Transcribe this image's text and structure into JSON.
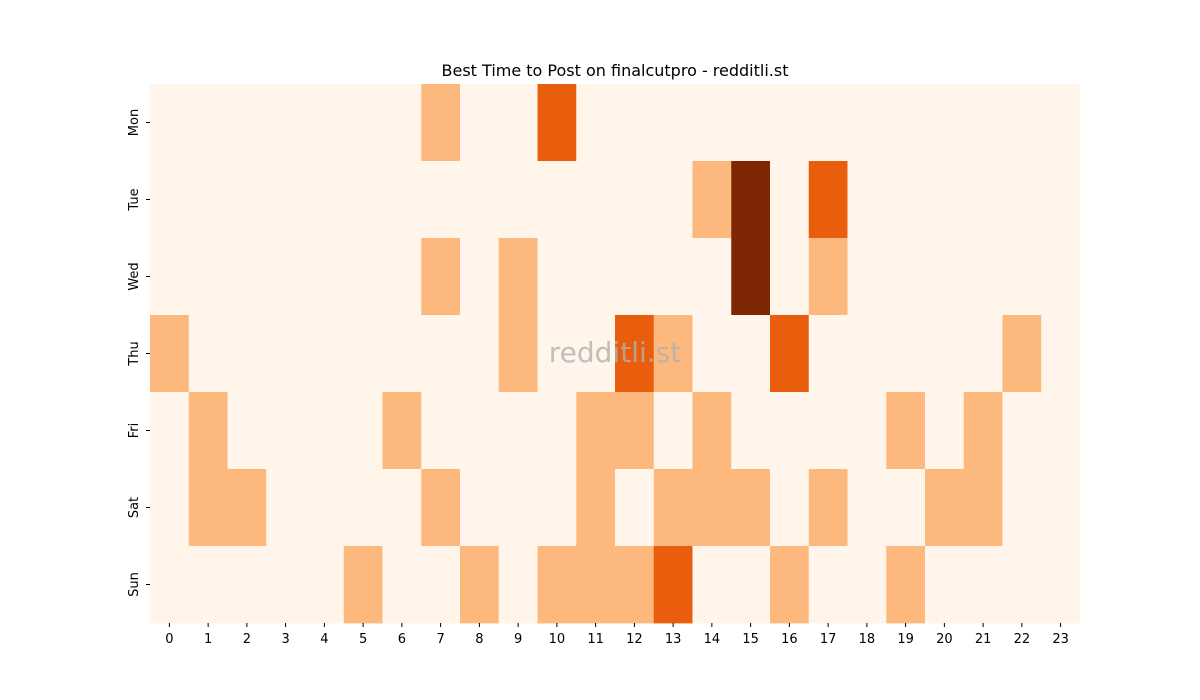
{
  "chart_data": {
    "type": "heatmap",
    "title": "Best Time to Post on finalcutpro - redditli.st",
    "x_categories": [
      "0",
      "1",
      "2",
      "3",
      "4",
      "5",
      "6",
      "7",
      "8",
      "9",
      "10",
      "11",
      "12",
      "13",
      "14",
      "15",
      "16",
      "17",
      "18",
      "19",
      "20",
      "21",
      "22",
      "23"
    ],
    "y_categories": [
      "Mon",
      "Tue",
      "Wed",
      "Thu",
      "Fri",
      "Sat",
      "Sun"
    ],
    "values": [
      [
        0,
        0,
        0,
        0,
        0,
        0,
        0,
        1,
        0,
        0,
        2,
        0,
        0,
        0,
        0,
        0,
        0,
        0,
        0,
        0,
        0,
        0,
        0,
        0
      ],
      [
        0,
        0,
        0,
        0,
        0,
        0,
        0,
        0,
        0,
        0,
        0,
        0,
        0,
        0,
        1,
        3,
        0,
        2,
        0,
        0,
        0,
        0,
        0,
        0
      ],
      [
        0,
        0,
        0,
        0,
        0,
        0,
        0,
        1,
        0,
        1,
        0,
        0,
        0,
        0,
        0,
        3,
        0,
        1,
        0,
        0,
        0,
        0,
        0,
        0
      ],
      [
        1,
        0,
        0,
        0,
        0,
        0,
        0,
        0,
        0,
        1,
        0,
        0,
        2,
        1,
        0,
        0,
        2,
        0,
        0,
        0,
        0,
        0,
        1,
        0
      ],
      [
        0,
        1,
        0,
        0,
        0,
        0,
        1,
        0,
        0,
        0,
        0,
        1,
        1,
        0,
        1,
        0,
        0,
        0,
        0,
        1,
        0,
        1,
        0,
        0
      ],
      [
        0,
        1,
        1,
        0,
        0,
        0,
        0,
        1,
        0,
        0,
        0,
        1,
        0,
        1,
        1,
        1,
        0,
        1,
        0,
        0,
        1,
        1,
        0,
        0
      ],
      [
        0,
        0,
        0,
        0,
        0,
        1,
        0,
        0,
        1,
        0,
        1,
        1,
        1,
        2,
        0,
        0,
        1,
        0,
        0,
        1,
        0,
        0,
        0,
        0
      ]
    ],
    "value_range": [
      0,
      3
    ],
    "colormap": "Oranges",
    "level_colors": [
      "#fff5eb",
      "#fdb97d",
      "#e95e0d",
      "#7f2704"
    ],
    "watermark": "redditli.st",
    "grid": false,
    "legend": "none"
  }
}
